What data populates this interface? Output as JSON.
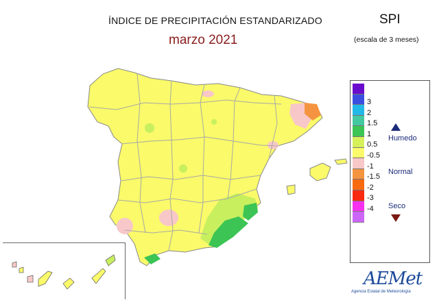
{
  "title": "ÍNDICE DE PRECIPITACIÓN ESTANDARIZADO",
  "subtitle": "marzo 2021",
  "index_label": "SPI",
  "scale_label": "(escala de 3 meses)",
  "legend": {
    "colors": [
      "#6a0ccc",
      "#3a4fe0",
      "#22b8e8",
      "#44c8a0",
      "#3cc454",
      "#d6f05a",
      "#fafa6a",
      "#f8c8c8",
      "#f59440",
      "#f86a10",
      "#f82a12",
      "#f830f0",
      "#cc66f8"
    ],
    "ticks": [
      "3",
      "2",
      "1.5",
      "1",
      "0.5",
      "-0.5",
      "-1",
      "-1.5",
      "-2",
      "-3",
      "-4"
    ],
    "categories": {
      "wet": "Humedo",
      "normal": "Normal",
      "dry": "Seco"
    }
  },
  "map_colors": {
    "normal": "#fafa6a",
    "slightly_wet": "#c8ef5e",
    "wet": "#3cc454",
    "slightly_dry": "#f8c8c8",
    "dry": "#f59440",
    "border": "#a0a0a0"
  },
  "logo": {
    "name": "AEMet",
    "tagline": "Agencia Estatal de Meteorología"
  }
}
